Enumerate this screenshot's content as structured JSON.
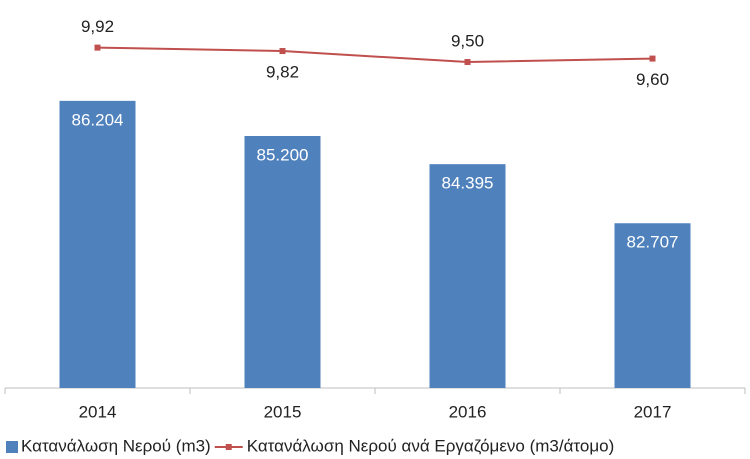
{
  "chart_data": {
    "type": "bar_line",
    "categories": [
      "2014",
      "2015",
      "2016",
      "2017"
    ],
    "series": [
      {
        "name": "Κατανάλωση Νερού (m3)",
        "type": "bar",
        "color": "#4f81bd",
        "values": [
          86204,
          85200,
          84395,
          82707
        ],
        "value_labels": [
          "86.204",
          "85.200",
          "84.395",
          "82.707"
        ]
      },
      {
        "name": "Κατανάλωση Νερού ανά Εργαζόμενο (m3/άτομο)",
        "type": "line",
        "axis": "y2",
        "color": "#c0504d",
        "values": [
          9.92,
          9.82,
          9.5,
          9.6
        ],
        "value_labels": [
          "9,92",
          "9,82",
          "9,50",
          "9,60"
        ]
      }
    ],
    "ylim": [
      78000,
      88000
    ],
    "y2lim": [
      0,
      10.2
    ],
    "legend": "bottom"
  }
}
